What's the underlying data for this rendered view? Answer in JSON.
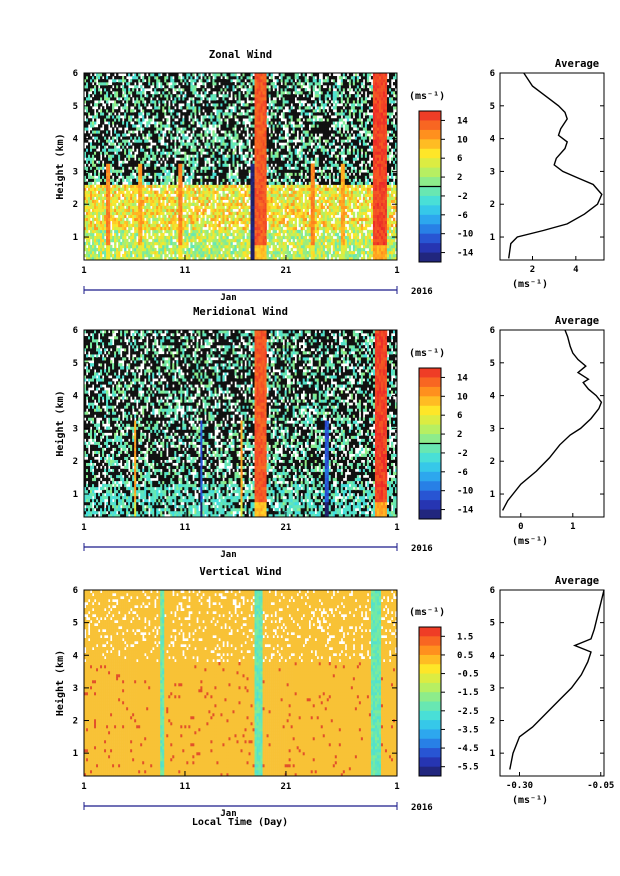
{
  "figure": {
    "month_label": "Jan",
    "year_label": "2016",
    "xlabel": "Local Time (Day)",
    "x_ticks": [
      "1",
      "11",
      "21",
      "1"
    ]
  },
  "chart_data": [
    {
      "type": "heatmap",
      "title": "Zonal Wind",
      "ylabel": "Height (km)",
      "xlabel": "",
      "xlim_days": [
        1,
        32
      ],
      "ylim_km": [
        0.3,
        6
      ],
      "y_ticks": [
        "1",
        "2",
        "3",
        "4",
        "5",
        "6"
      ],
      "colorbar": {
        "unit_label": "(ms⁻¹)",
        "range": [
          -16,
          16
        ],
        "tick_labels": [
          "14",
          "10",
          "6",
          "2",
          "-2",
          "-6",
          "-10",
          "-14"
        ],
        "tick_values": [
          14,
          10,
          6,
          2,
          -2,
          -6,
          -10,
          -14
        ]
      },
      "notes": "time-height cross-section; strong positive (red) bursts near Jan 18 and Jan 30, negative near Jan 17 at 1 km"
    },
    {
      "type": "line",
      "title": "Average",
      "xlabel": "(ms⁻¹)",
      "x_ticks": [
        "2",
        "4"
      ],
      "xlim": [
        0.5,
        5.3
      ],
      "ylim": [
        0.3,
        6
      ],
      "y_ticks": [
        "1",
        "2",
        "3",
        "4",
        "5",
        "6"
      ],
      "series": [
        {
          "x": [
            0.9,
            1.0,
            1.3,
            2.5,
            3.6,
            4.4,
            5.0,
            5.2,
            4.8,
            4.1,
            3.4,
            3.0,
            3.1,
            3.5,
            3.6,
            3.2,
            3.3,
            3.6,
            3.5,
            3.2,
            2.8,
            2.4,
            2.0,
            1.8,
            1.6
          ],
          "y": [
            0.35,
            0.8,
            1.0,
            1.2,
            1.4,
            1.7,
            2.0,
            2.3,
            2.6,
            2.8,
            3.0,
            3.2,
            3.4,
            3.7,
            3.9,
            4.1,
            4.3,
            4.6,
            4.8,
            5.0,
            5.2,
            5.4,
            5.6,
            5.8,
            6.0
          ]
        }
      ]
    },
    {
      "type": "heatmap",
      "title": "Meridional Wind",
      "ylabel": "Height (km)",
      "xlabel": "",
      "xlim_days": [
        1,
        32
      ],
      "ylim_km": [
        0.3,
        6
      ],
      "y_ticks": [
        "1",
        "2",
        "3",
        "4",
        "5",
        "6"
      ],
      "colorbar": {
        "unit_label": "(ms⁻¹)",
        "range": [
          -16,
          16
        ],
        "tick_labels": [
          "14",
          "10",
          "6",
          "2",
          "-2",
          "-6",
          "-10",
          "-14"
        ],
        "tick_values": [
          14,
          10,
          6,
          2,
          -2,
          -6,
          -10,
          -14
        ]
      },
      "notes": "mostly weak green values with strong red bursts near Jan 18 and Jan 30"
    },
    {
      "type": "line",
      "title": "Average",
      "xlabel": "(ms⁻¹)",
      "x_ticks": [
        "0",
        "1"
      ],
      "xlim": [
        -0.4,
        1.6
      ],
      "ylim": [
        0.3,
        6
      ],
      "y_ticks": [
        "1",
        "2",
        "3",
        "4",
        "5",
        "6"
      ],
      "series": [
        {
          "x": [
            -0.35,
            -0.25,
            0.0,
            0.3,
            0.55,
            0.75,
            0.95,
            1.15,
            1.35,
            1.5,
            1.55,
            1.45,
            1.3,
            1.2,
            1.3,
            1.1,
            1.25,
            1.1,
            1.0,
            0.95,
            0.9,
            0.85
          ],
          "y": [
            0.5,
            0.8,
            1.3,
            1.7,
            2.1,
            2.5,
            2.8,
            3.0,
            3.3,
            3.6,
            3.8,
            4.0,
            4.2,
            4.4,
            4.5,
            4.7,
            4.9,
            5.1,
            5.3,
            5.5,
            5.8,
            6.0
          ]
        }
      ]
    },
    {
      "type": "heatmap",
      "title": "Vertical Wind",
      "ylabel": "Height (km)",
      "xlabel": "Local Time (Day)",
      "xlim_days": [
        1,
        32
      ],
      "ylim_km": [
        0.3,
        6
      ],
      "y_ticks": [
        "1",
        "2",
        "3",
        "4",
        "5",
        "6"
      ],
      "colorbar": {
        "unit_label": "(ms⁻¹)",
        "range": [
          -6,
          2
        ],
        "tick_labels": [
          "1.5",
          "0.5",
          "-0.5",
          "-1.5",
          "-2.5",
          "-3.5",
          "-4.5",
          "-5.5"
        ],
        "tick_values": [
          1.5,
          0.5,
          -0.5,
          -1.5,
          -2.5,
          -3.5,
          -4.5,
          -5.5
        ]
      },
      "notes": "mostly near zero (orange) with negative bands near Jan 18 and Jan 30"
    },
    {
      "type": "line",
      "title": "Average",
      "xlabel": "(ms⁻¹)",
      "x_ticks": [
        "-0.30",
        "-0.05"
      ],
      "xlim": [
        -0.36,
        -0.04
      ],
      "ylim": [
        0.3,
        6
      ],
      "y_ticks": [
        "1",
        "2",
        "3",
        "4",
        "5",
        "6"
      ],
      "series": [
        {
          "x": [
            -0.33,
            -0.32,
            -0.3,
            -0.26,
            -0.22,
            -0.18,
            -0.14,
            -0.11,
            -0.09,
            -0.08,
            -0.13,
            -0.08,
            -0.07,
            -0.06,
            -0.05,
            -0.04
          ],
          "y": [
            0.5,
            1.0,
            1.5,
            1.8,
            2.2,
            2.6,
            3.0,
            3.4,
            3.8,
            4.1,
            4.3,
            4.5,
            4.8,
            5.2,
            5.6,
            6.0
          ]
        }
      ]
    }
  ]
}
